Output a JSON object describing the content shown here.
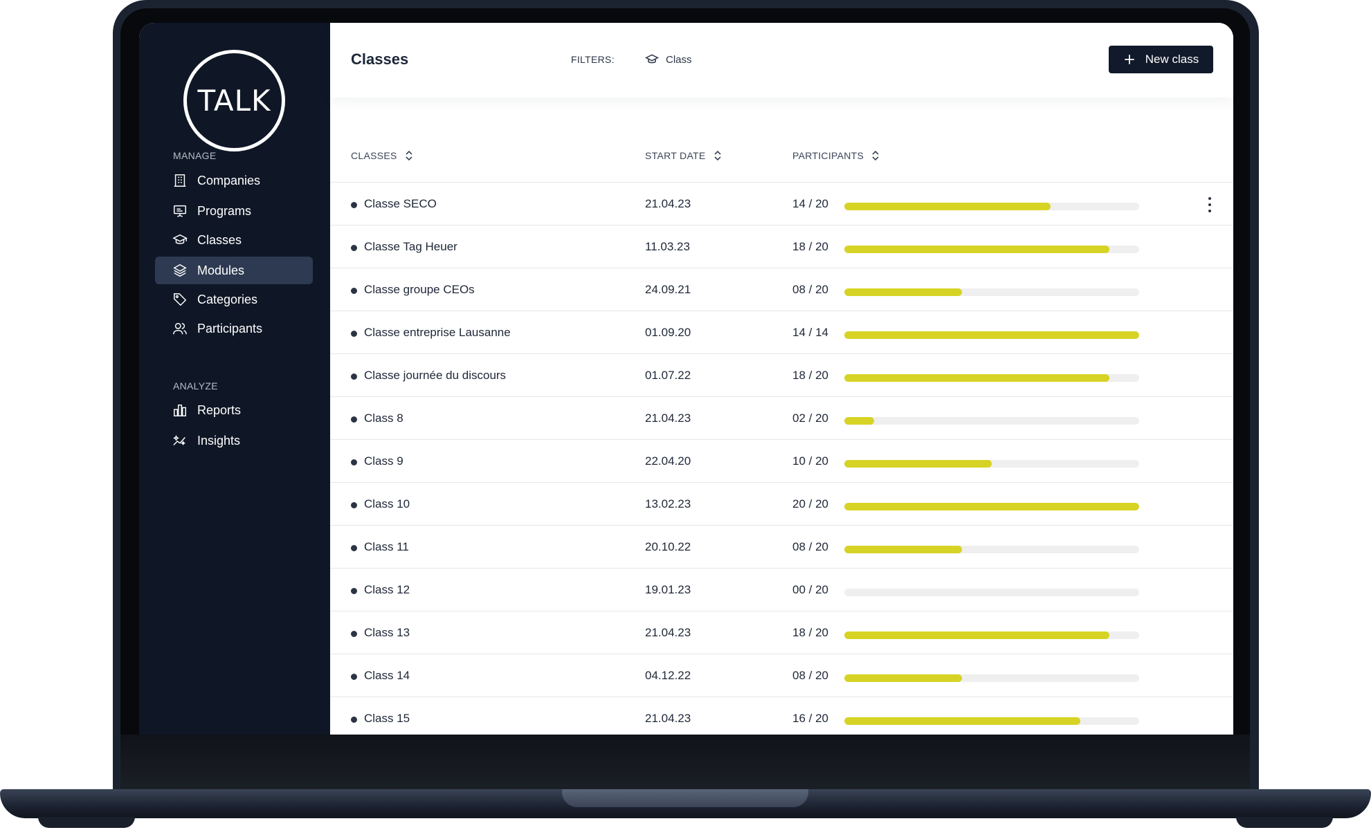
{
  "app": {
    "logo_text": "TALK"
  },
  "sidebar": {
    "sections": [
      {
        "label": "MANAGE"
      },
      {
        "label": "ANALYZE"
      }
    ],
    "items": [
      {
        "label": "Companies",
        "icon": "building-icon"
      },
      {
        "label": "Programs",
        "icon": "presentation-icon"
      },
      {
        "label": "Classes",
        "icon": "graduation-cap-icon"
      },
      {
        "label": "Modules",
        "icon": "layers-icon",
        "active": true
      },
      {
        "label": "Categories",
        "icon": "tag-icon"
      },
      {
        "label": "Participants",
        "icon": "users-icon"
      },
      {
        "label": "Reports",
        "icon": "bar-chart-icon"
      },
      {
        "label": "Insights",
        "icon": "sparkle-chart-icon"
      }
    ]
  },
  "header": {
    "title": "Classes",
    "filters_label": "FILTERS:",
    "filter_chip": "Class",
    "new_button": "New class"
  },
  "table": {
    "columns": [
      {
        "label": "CLASSES"
      },
      {
        "label": "START DATE"
      },
      {
        "label": "PARTICIPANTS"
      }
    ],
    "rows": [
      {
        "name": "Classe SECO",
        "date": "21.04.23",
        "count": "14 / 20",
        "filled": 14,
        "capacity": 20
      },
      {
        "name": "Classe Tag Heuer",
        "date": "11.03.23",
        "count": "18 / 20",
        "filled": 18,
        "capacity": 20
      },
      {
        "name": "Classe groupe CEOs",
        "date": "24.09.21",
        "count": "08 / 20",
        "filled": 8,
        "capacity": 20
      },
      {
        "name": "Classe entreprise Lausanne",
        "date": "01.09.20",
        "count": "14 / 14",
        "filled": 14,
        "capacity": 14
      },
      {
        "name": "Classe journée du discours",
        "date": "01.07.22",
        "count": "18 / 20",
        "filled": 18,
        "capacity": 20
      },
      {
        "name": "Class 8",
        "date": "21.04.23",
        "count": "02 / 20",
        "filled": 2,
        "capacity": 20
      },
      {
        "name": "Class 9",
        "date": "22.04.20",
        "count": "10 / 20",
        "filled": 10,
        "capacity": 20
      },
      {
        "name": "Class 10",
        "date": "13.02.23",
        "count": "20 / 20",
        "filled": 20,
        "capacity": 20
      },
      {
        "name": "Class 11",
        "date": "20.10.22",
        "count": "08 / 20",
        "filled": 8,
        "capacity": 20
      },
      {
        "name": "Class 12",
        "date": "19.01.23",
        "count": "00 / 20",
        "filled": 0,
        "capacity": 20
      },
      {
        "name": "Class 13",
        "date": "21.04.23",
        "count": "18 / 20",
        "filled": 18,
        "capacity": 20
      },
      {
        "name": "Class 14",
        "date": "04.12.22",
        "count": "08 / 20",
        "filled": 8,
        "capacity": 20
      },
      {
        "name": "Class 15",
        "date": "21.04.23",
        "count": "16 / 20",
        "filled": 16,
        "capacity": 20
      }
    ]
  },
  "colors": {
    "sidebar_bg": "#0f1726",
    "sidebar_active": "#2d3a51",
    "progress_fill": "#d7d325",
    "progress_track": "#efefef",
    "button_bg": "#111a2a"
  }
}
